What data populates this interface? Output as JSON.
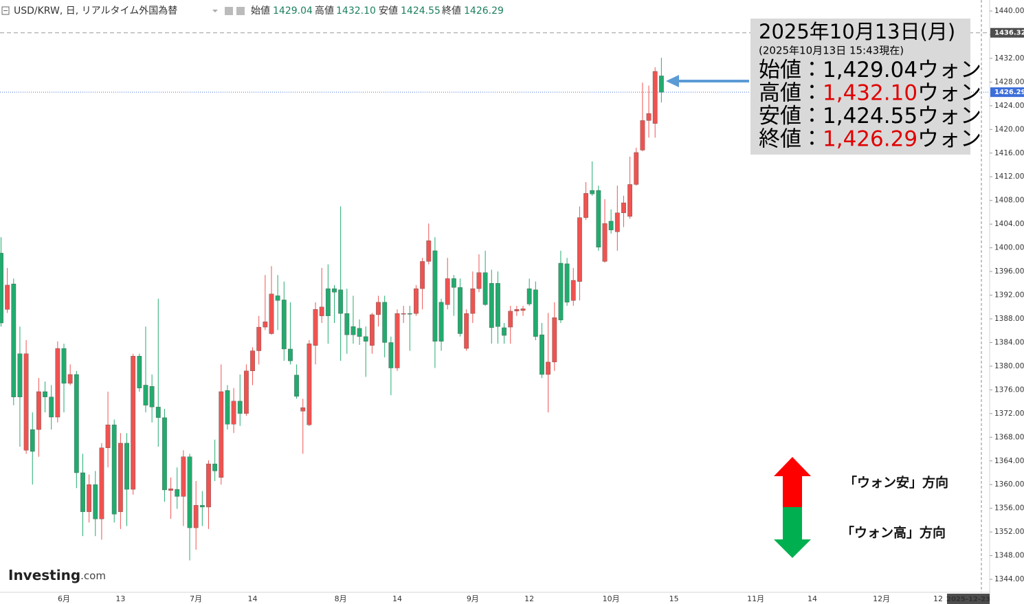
{
  "header": {
    "symbol": "USD/KRW, 日, リアルタイム外国為替",
    "ohlc": [
      {
        "label": "始値",
        "value": "1429.04"
      },
      {
        "label": "高値",
        "value": "1432.10"
      },
      {
        "label": "安値",
        "value": "1424.55"
      },
      {
        "label": "終値",
        "value": "1426.29"
      }
    ]
  },
  "chart_data": {
    "type": "candlestick",
    "categories": [
      null,
      null,
      null,
      null,
      null,
      null,
      null,
      null,
      null,
      null,
      "6月",
      null,
      null,
      null,
      null,
      null,
      null,
      null,
      null,
      "13",
      null,
      null,
      null,
      null,
      null,
      null,
      null,
      null,
      null,
      null,
      null,
      "7月",
      null,
      null,
      null,
      null,
      null,
      null,
      null,
      null,
      "14",
      null,
      null,
      null,
      null,
      null,
      null,
      null,
      null,
      null,
      null,
      null,
      null,
      null,
      "8月",
      null,
      null,
      null,
      null,
      null,
      null,
      null,
      null,
      "14",
      null,
      null,
      null,
      null,
      null,
      null,
      null,
      null,
      null,
      null,
      null,
      "9月",
      null,
      null,
      null,
      null,
      null,
      null,
      null,
      null,
      "12",
      null,
      null,
      null,
      null,
      null,
      null,
      null,
      null,
      null,
      null,
      null,
      null,
      "10月",
      null,
      null,
      null,
      null,
      null,
      null,
      null,
      null,
      null,
      "15",
      null,
      null,
      null,
      null,
      null,
      null,
      null,
      null,
      null,
      null,
      null,
      null,
      "11月",
      null,
      null,
      null,
      null,
      null,
      null,
      null,
      null,
      "14",
      null,
      null,
      null,
      null,
      null,
      null,
      null,
      null,
      null,
      null,
      "12月",
      null,
      null,
      null,
      null,
      null,
      null,
      null,
      null,
      "12",
      null,
      null,
      null,
      null,
      null,
      null,
      "2025-12-23"
    ],
    "open": [
      1399.1,
      1389.6,
      1393.9,
      1382.1,
      1365.8,
      1369.3,
      1369.3,
      1375.7,
      1374.8,
      1371.4,
      1383.0,
      1377.1,
      1378.6,
      1362.0,
      1355.4,
      1360.0,
      1354.2,
      1366.2,
      1370.1,
      1355.4,
      1367.0,
      1359.2,
      1381.7,
      1376.8,
      1376.6,
      1373.1,
      1371.3,
      1359.0,
      1359.2,
      1358.0,
      1364.7,
      1352.7,
      1356.5,
      1356.2,
      1363.5,
      1361.2,
      1375.9,
      1370.2,
      1374.1,
      1372.0,
      1379.2,
      1382.6,
      1386.6,
      1385.5,
      1391.9,
      1391.2,
      1382.9,
      1378.5,
      1372.4,
      1370.1,
      1383.5,
      1388.5,
      1393.1,
      1393.1,
      1392.9,
      1388.9,
      1386.7,
      1386.4,
      1385.0,
      1383.5,
      1388.7,
      1390.8,
      1384.0,
      1379.7,
      1388.8,
      1388.9,
      1388.9,
      1393.1,
      1397.7,
      1399.5,
      1390.8,
      1390.4,
      1394.8,
      1393.3,
      1383.0,
      1388.9,
      1393.1,
      1395.8,
      1394.0,
      1394.0,
      1386.5,
      1386.6,
      1389.3,
      1389.4,
      1393.1,
      1392.9,
      1385.3,
      1378.6,
      1380.7,
      1397.4,
      1397.3,
      1391.1,
      1394.3,
      1405.1,
      1409.7,
      1409.7,
      1397.7,
      1404.5,
      1402.7,
      1405.9,
      1405.3,
      1410.7,
      1416.5,
      1421.5,
      1421.0,
      1429.04,
      null,
      null,
      null,
      null,
      null,
      null,
      null,
      null,
      null,
      null,
      null,
      null,
      null,
      null,
      null,
      null,
      null,
      null,
      null,
      null,
      null,
      null,
      null,
      null,
      null,
      null,
      null,
      null,
      null,
      null,
      null,
      null,
      null,
      null,
      null,
      null,
      null,
      null,
      null,
      null,
      null,
      null,
      null,
      null,
      null,
      null,
      null,
      null,
      null,
      null,
      null
    ],
    "high": [
      1401.8,
      1396.6,
      1394.8,
      1386.7,
      1384.4,
      1372.2,
      1378.0,
      1377.4,
      1376.8,
      1384.2,
      1383.8,
      1380.3,
      1379.2,
      1365.2,
      1361.7,
      1362.3,
      1367.0,
      1375.7,
      1371.0,
      1368.7,
      1368.7,
      1382.1,
      1382.1,
      1386.7,
      1378.6,
      1391.4,
      1372.8,
      1361.2,
      1362.9,
      1365.8,
      1365.2,
      1360.6,
      1358.9,
      1364.1,
      1367.6,
      1380.3,
      1376.8,
      1376.3,
      1378.6,
      1380.3,
      1383.2,
      1388.5,
      1395.4,
      1396.9,
      1395.4,
      1394.3,
      1390.8,
      1380.3,
      1374.5,
      1384.4,
      1390.8,
      1396.6,
      1397.2,
      1393.7,
      1407.0,
      1393.1,
      1391.9,
      1387.9,
      1386.7,
      1389.0,
      1391.9,
      1391.9,
      1385.0,
      1389.6,
      1390.2,
      1390.2,
      1393.7,
      1398.3,
      1404.1,
      1401.8,
      1391.4,
      1398.3,
      1395.4,
      1394.8,
      1389.6,
      1396.0,
      1398.9,
      1399.5,
      1396.3,
      1396.0,
      1387.3,
      1390.2,
      1390.2,
      1390.2,
      1394.8,
      1394.3,
      1387.3,
      1389.0,
      1390.8,
      1399.5,
      1398.3,
      1396.6,
      1407.0,
      1411.1,
      1414.6,
      1410.5,
      1408.2,
      1406.5,
      1410.5,
      1408.8,
      1415.4,
      1416.9,
      1427.9,
      1427.4,
      1430.5,
      1432.1,
      null,
      null,
      null,
      null,
      null,
      null,
      null,
      null,
      null,
      null,
      null,
      null,
      null,
      null,
      null,
      null,
      null,
      null,
      null,
      null,
      null,
      null,
      null,
      null,
      null,
      null,
      null,
      null,
      null,
      null,
      null,
      null,
      null,
      null,
      null,
      null,
      null,
      null,
      null,
      null,
      null,
      null,
      null,
      null,
      null,
      null,
      null,
      null,
      null,
      null,
      null
    ],
    "low": [
      1386.7,
      1389.0,
      1373.4,
      1366.4,
      1365.2,
      1360.0,
      1364.7,
      1372.2,
      1369.3,
      1370.5,
      1372.2,
      1376.8,
      1359.4,
      1351.3,
      1353.6,
      1351.3,
      1350.7,
      1362.9,
      1353.6,
      1352.5,
      1353.0,
      1358.3,
      1375.7,
      1372.2,
      1370.5,
      1366.4,
      1357.1,
      1354.2,
      1355.9,
      1353.0,
      1347.2,
      1349.0,
      1353.0,
      1352.5,
      1360.6,
      1360.0,
      1369.3,
      1368.7,
      1369.9,
      1371.6,
      1376.8,
      1380.3,
      1386.1,
      1385.3,
      1386.1,
      1380.9,
      1380.3,
      1374.5,
      1365.2,
      1369.9,
      1380.3,
      1387.3,
      1383.8,
      1387.3,
      1380.9,
      1382.1,
      1383.8,
      1383.6,
      1378.2,
      1382.1,
      1386.7,
      1381.5,
      1375.1,
      1379.2,
      1387.3,
      1382.6,
      1388.5,
      1389.6,
      1397.2,
      1379.7,
      1382.6,
      1389.6,
      1388.5,
      1385.0,
      1382.6,
      1387.3,
      1392.5,
      1390.2,
      1383.8,
      1383.8,
      1383.8,
      1383.8,
      1388.5,
      1388.5,
      1390.2,
      1384.4,
      1378.0,
      1372.2,
      1379.2,
      1387.3,
      1390.2,
      1390.2,
      1391.1,
      1404.7,
      1408.8,
      1399.5,
      1397.5,
      1402.4,
      1399.5,
      1403.5,
      1404.9,
      1410.5,
      1416.3,
      1418.6,
      1418.6,
      1424.55,
      null,
      null,
      null,
      null,
      null,
      null,
      null,
      null,
      null,
      null,
      null,
      null,
      null,
      null,
      null,
      null,
      null,
      null,
      null,
      null,
      null,
      null,
      null,
      null,
      null,
      null,
      null,
      null,
      null,
      null,
      null,
      null,
      null,
      null,
      null,
      null,
      null,
      null,
      null,
      null,
      null,
      null,
      null,
      null,
      null,
      null,
      null,
      null,
      null,
      null,
      null
    ],
    "close": [
      1387.3,
      1393.7,
      1374.8,
      1374.8,
      1382.1,
      1365.6,
      1375.7,
      1374.8,
      1371.4,
      1383.0,
      1377.1,
      1378.6,
      1362.0,
      1355.4,
      1360.0,
      1354.2,
      1366.2,
      1370.1,
      1355.0,
      1367.0,
      1359.2,
      1381.7,
      1376.3,
      1373.4,
      1373.1,
      1371.3,
      1359.1,
      1359.3,
      1358.0,
      1364.7,
      1352.7,
      1356.5,
      1356.2,
      1363.5,
      1362.3,
      1375.7,
      1370.2,
      1374.1,
      1372.0,
      1379.2,
      1382.6,
      1386.6,
      1387.5,
      1392.2,
      1391.1,
      1382.9,
      1380.9,
      1374.9,
      1373.0,
      1383.8,
      1389.6,
      1390.0,
      1388.5,
      1392.5,
      1388.9,
      1385.3,
      1385.3,
      1385.0,
      1384.2,
      1388.7,
      1390.8,
      1384.0,
      1379.7,
      1388.9,
      1388.9,
      1388.8,
      1393.1,
      1397.7,
      1401.2,
      1384.2,
      1384.2,
      1394.8,
      1393.3,
      1385.5,
      1388.9,
      1393.1,
      1395.8,
      1390.4,
      1386.5,
      1386.7,
      1385.2,
      1389.3,
      1389.6,
      1389.7,
      1390.5,
      1385.0,
      1378.6,
      1380.7,
      1388.2,
      1387.8,
      1390.8,
      1394.5,
      1405.1,
      1409.2,
      1409.1,
      1400.1,
      1404.1,
      1403.0,
      1405.9,
      1407.6,
      1410.7,
      1416.1,
      1421.5,
      1422.7,
      1429.8,
      1426.29,
      null,
      null,
      null,
      null,
      null,
      null,
      null,
      null,
      null,
      null,
      null,
      null,
      null,
      null,
      null,
      null,
      null,
      null,
      null,
      null,
      null,
      null,
      null,
      null,
      null,
      null,
      null,
      null,
      null,
      null,
      null,
      null,
      null,
      null,
      null,
      null,
      null,
      null,
      null,
      null,
      null,
      null,
      null,
      null,
      null,
      null,
      null,
      null,
      null,
      null,
      null
    ],
    "up_color": "#ef5350",
    "down_color": "#22ab6e",
    "ylim": [
      1341.8,
      1441.86
    ],
    "yticks": [
      {
        "value": 1344,
        "label": "1344.00"
      },
      {
        "value": 1348,
        "label": "1348.00"
      },
      {
        "value": 1352,
        "label": "1352.00"
      },
      {
        "value": 1356,
        "label": "1356.00"
      },
      {
        "value": 1360,
        "label": "1360.00"
      },
      {
        "value": 1364,
        "label": "1364.00"
      },
      {
        "value": 1368,
        "label": "1368.00"
      },
      {
        "value": 1372,
        "label": "1372.00"
      },
      {
        "value": 1376,
        "label": "1376.00"
      },
      {
        "value": 1380,
        "label": "1380.00"
      },
      {
        "value": 1384,
        "label": "1384.00"
      },
      {
        "value": 1388,
        "label": "1388.00"
      },
      {
        "value": 1392,
        "label": "1392.00"
      },
      {
        "value": 1396,
        "label": "1396.00"
      },
      {
        "value": 1400,
        "label": "1400.00"
      },
      {
        "value": 1404,
        "label": "1404.00"
      },
      {
        "value": 1408,
        "label": "1408.00"
      },
      {
        "value": 1412,
        "label": "1412.00"
      },
      {
        "value": 1416,
        "label": "1416.00"
      },
      {
        "value": 1420,
        "label": "1420.00"
      },
      {
        "value": 1424,
        "label": "1424.00"
      },
      {
        "value": 1428,
        "label": "1428.00"
      },
      {
        "value": 1432,
        "label": "1432.00"
      },
      {
        "value": 1436,
        "label": "1436.00"
      },
      {
        "value": 1440,
        "label": "1440.00"
      }
    ],
    "grid": false,
    "ref_lines": [
      {
        "value": 1436.32,
        "color": "#999999",
        "box_color": "#4d4d4d",
        "dash": "6,4"
      },
      {
        "value": 1426.29,
        "color": "#3d6fd9",
        "box_color": "#3d6fd9",
        "dash": "1,2"
      }
    ],
    "annotation": {
      "title": "2025年10月13日(月)",
      "subtitle": "(2025年10月13日 15:43現在)",
      "rows": [
        {
          "label": "始値：",
          "value": "1,429.04",
          "unit": "ウォン",
          "value_color": "#000000"
        },
        {
          "label": "高値：",
          "value": "1,432.10",
          "unit": "ウォン",
          "value_color": "#e00000"
        },
        {
          "label": "安値：",
          "value": "1,424.55",
          "unit": "ウォン",
          "value_color": "#000000"
        },
        {
          "label": "終値：",
          "value": "1,426.29",
          "unit": "ウォン",
          "value_color": "#e00000"
        }
      ]
    },
    "direction_labels": {
      "up": "「ウォン安」方向",
      "down": "「ウォン高」方向"
    }
  },
  "logo": {
    "name": "Investing",
    "suffix": ".com"
  }
}
